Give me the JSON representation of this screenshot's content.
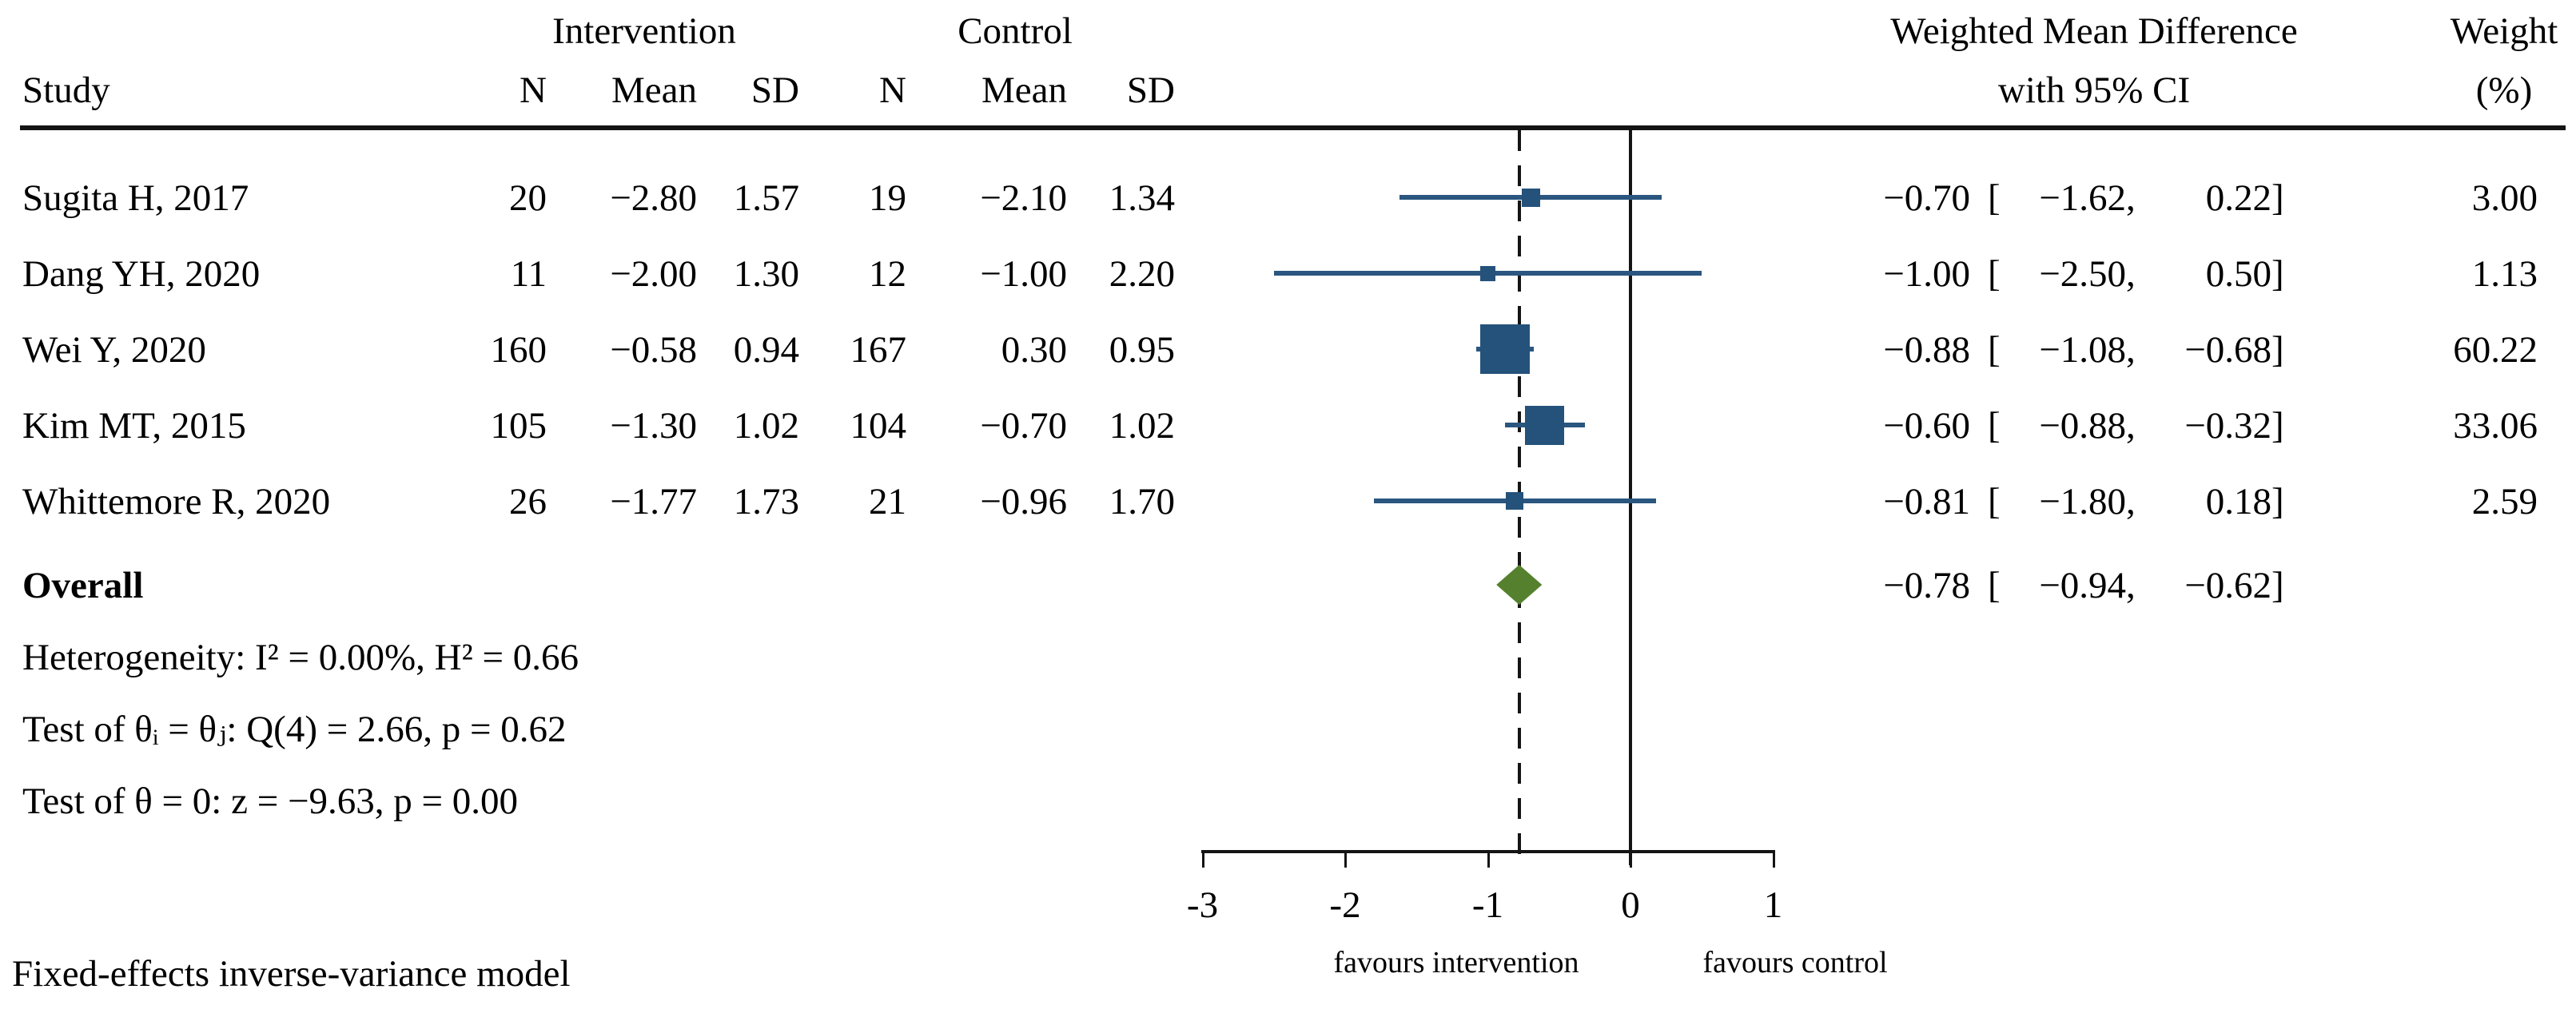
{
  "header": {
    "group_intervention": "Intervention",
    "group_control": "Control",
    "col_study": "Study",
    "col_n": "N",
    "col_mean": "Mean",
    "col_sd": "SD",
    "effect_line1": "Weighted Mean Difference",
    "effect_line2": "with 95% CI",
    "weight_line1": "Weight",
    "weight_line2": "(%)"
  },
  "format": {
    "open_bracket": "[",
    "separator": ",",
    "close_bracket": "]"
  },
  "table": {
    "rows": [
      {
        "study": "Sugita H, 2017",
        "n1": "20",
        "mean1": "−2.80",
        "sd1": "1.57",
        "n2": "19",
        "mean2": "−2.10",
        "sd2": "1.34",
        "est": "−0.70",
        "lo": "−1.62",
        "hi": "0.22",
        "weight": "3.00"
      },
      {
        "study": "Dang YH, 2020",
        "n1": "11",
        "mean1": "−2.00",
        "sd1": "1.30",
        "n2": "12",
        "mean2": "−1.00",
        "sd2": "2.20",
        "est": "−1.00",
        "lo": "−2.50",
        "hi": "0.50",
        "weight": "1.13"
      },
      {
        "study": "Wei Y, 2020",
        "n1": "160",
        "mean1": "−0.58",
        "sd1": "0.94",
        "n2": "167",
        "mean2": "0.30",
        "sd2": "0.95",
        "est": "−0.88",
        "lo": "−1.08",
        "hi": "−0.68",
        "weight": "60.22"
      },
      {
        "study": "Kim MT, 2015",
        "n1": "105",
        "mean1": "−1.30",
        "sd1": "1.02",
        "n2": "104",
        "mean2": "−0.70",
        "sd2": "1.02",
        "est": "−0.60",
        "lo": "−0.88",
        "hi": "−0.32",
        "weight": "33.06"
      },
      {
        "study": "Whittemore R, 2020",
        "n1": "26",
        "mean1": "−1.77",
        "sd1": "1.73",
        "n2": "21",
        "mean2": "−0.96",
        "sd2": "1.70",
        "est": "−0.81",
        "lo": "−1.80",
        "hi": "0.18",
        "weight": "2.59"
      }
    ],
    "overall_label": "Overall",
    "overall": {
      "est": "−0.78",
      "lo": "−0.94",
      "hi": "−0.62"
    }
  },
  "stats": {
    "heterogeneity": "Heterogeneity: I² = 0.00%, H² = 0.66",
    "test_thetas": "Test of θᵢ = θⱼ: Q(4) = 2.66, p = 0.62",
    "test_zero": "Test of θ = 0: z = −9.63, p = 0.00"
  },
  "model_note": "Fixed-effects inverse-variance model",
  "chart_data": {
    "type": "forest",
    "xlabel_left": "favours intervention",
    "xlabel_right": "favours control",
    "x_ticks": [
      -3,
      -2,
      -1,
      0,
      1
    ],
    "axis_range": [
      -3,
      1
    ],
    "zero_line": 0,
    "overall_reference_line": -0.78,
    "studies": [
      {
        "name": "Sugita H, 2017",
        "n_int": 20,
        "mean_int": -2.8,
        "sd_int": 1.57,
        "n_ctrl": 19,
        "mean_ctrl": -2.1,
        "sd_ctrl": 1.34,
        "est": -0.7,
        "ci": [
          -1.62,
          0.22
        ],
        "weight": 3.0
      },
      {
        "name": "Dang YH, 2020",
        "n_int": 11,
        "mean_int": -2.0,
        "sd_int": 1.3,
        "n_ctrl": 12,
        "mean_ctrl": -1.0,
        "sd_ctrl": 2.2,
        "est": -1.0,
        "ci": [
          -2.5,
          0.5
        ],
        "weight": 1.13
      },
      {
        "name": "Wei Y, 2020",
        "n_int": 160,
        "mean_int": -0.58,
        "sd_int": 0.94,
        "n_ctrl": 167,
        "mean_ctrl": 0.3,
        "sd_ctrl": 0.95,
        "est": -0.88,
        "ci": [
          -1.08,
          -0.68
        ],
        "weight": 60.22
      },
      {
        "name": "Kim MT, 2015",
        "n_int": 105,
        "mean_int": -1.3,
        "sd_int": 1.02,
        "n_ctrl": 104,
        "mean_ctrl": -0.7,
        "sd_ctrl": 1.02,
        "est": -0.6,
        "ci": [
          -0.88,
          -0.32
        ],
        "weight": 33.06
      },
      {
        "name": "Whittemore R, 2020",
        "n_int": 26,
        "mean_int": -1.77,
        "sd_int": 1.73,
        "n_ctrl": 21,
        "mean_ctrl": -0.96,
        "sd_ctrl": 1.7,
        "est": -0.81,
        "ci": [
          -1.8,
          0.18
        ],
        "weight": 2.59
      }
    ],
    "overall": {
      "est": -0.78,
      "ci": [
        -0.94,
        -0.62
      ]
    },
    "model": "Fixed-effects inverse-variance model",
    "heterogeneity": {
      "I2_pct": 0.0,
      "H2": 0.66,
      "Q_df": 4,
      "Q": 2.66,
      "p_Q": 0.62,
      "z": -9.63,
      "p_z": 0.0
    }
  },
  "colors": {
    "marker_blue": "#25527b",
    "ci_blue": "#2a567f",
    "diamond_green": "#55812e",
    "line_black": "#141414"
  }
}
